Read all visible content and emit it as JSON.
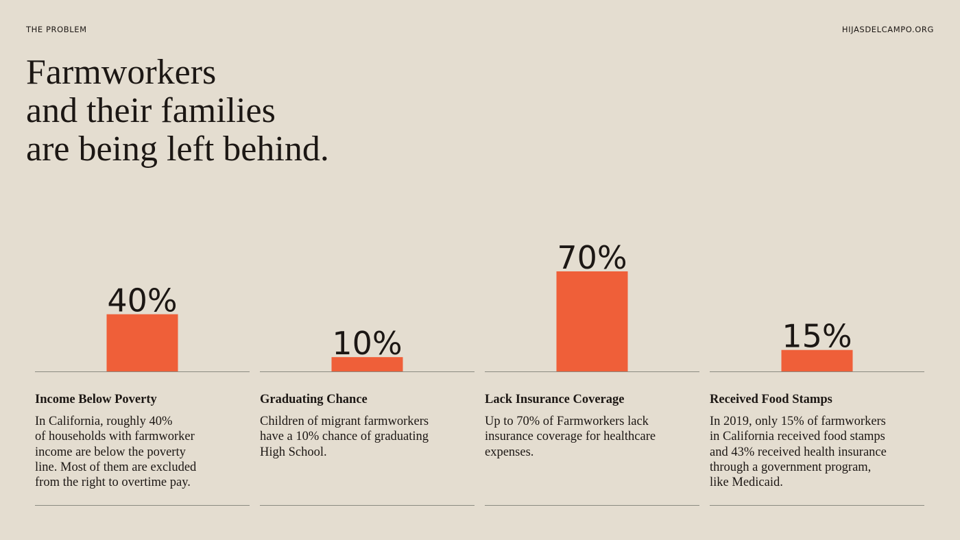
{
  "header": {
    "section_label": "THE PROBLEM",
    "site": "HIJASDELCAMPO.ORG"
  },
  "headline": {
    "lines": [
      "Farmworkers",
      "and their families",
      "are being left behind."
    ]
  },
  "colors": {
    "background": "#e4ddd0",
    "bar": "#ef5f39",
    "text": "#1c1714",
    "rule": "#8a8a80"
  },
  "chart_data": {
    "type": "bar",
    "categories": [
      "Income Below Poverty",
      "Graduating Chance",
      "Lack Insurance Coverage",
      "Received Food Stamps"
    ],
    "values": [
      40,
      10,
      70,
      15
    ],
    "value_labels": [
      "40%",
      "10%",
      "70%",
      "15%"
    ],
    "unit": "%",
    "ylim": [
      0,
      100
    ],
    "grid": false,
    "legend": "none"
  },
  "columns": [
    {
      "title": "Income Below Poverty",
      "body_lines": [
        "In California, roughly 40%",
        "of households with farmworker",
        "income are below the poverty",
        "line. Most of them are excluded",
        "from the right to overtime pay."
      ]
    },
    {
      "title": "Graduating Chance",
      "body_lines": [
        "Children of migrant farmworkers",
        "have a 10% chance of graduating",
        "High School."
      ]
    },
    {
      "title": "Lack Insurance Coverage",
      "body_lines": [
        "Up to 70% of Farmworkers lack",
        "insurance coverage for healthcare",
        "expenses."
      ]
    },
    {
      "title": "Received Food Stamps",
      "body_lines": [
        "In 2019, only 15% of farmworkers",
        "in California received food stamps",
        "and 43% received health insurance",
        "through a government program,",
        "like Medicaid."
      ]
    }
  ]
}
